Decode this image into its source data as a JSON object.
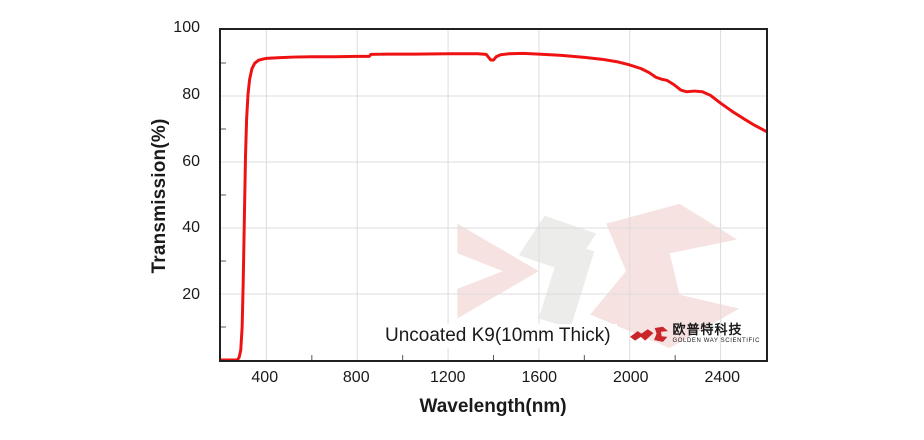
{
  "chart_data": {
    "type": "line",
    "title": "",
    "xlabel": "Wavelength(nm)",
    "ylabel": "Transmission(%)",
    "xlim": [
      200,
      2600
    ],
    "ylim": [
      0,
      100
    ],
    "x_ticks": [
      400,
      800,
      1200,
      1600,
      2000,
      2400
    ],
    "y_ticks": [
      20,
      40,
      60,
      80,
      100
    ],
    "x_minor_ticks": [
      600,
      1000,
      1400,
      1800,
      2200
    ],
    "y_minor_ticks": [
      10,
      30,
      50,
      70,
      90
    ],
    "grid": true,
    "grid_color": "#dcdcdc",
    "axis_color": "#212121",
    "annotation": "Uncoated K9(10mm Thick)",
    "series": [
      {
        "name": "Uncoated K9 10mm Thick",
        "color": "#ee1212",
        "points": [
          [
            200,
            0
          ],
          [
            272,
            0
          ],
          [
            280,
            0.8
          ],
          [
            287,
            3
          ],
          [
            293,
            10
          ],
          [
            298,
            24
          ],
          [
            303,
            44
          ],
          [
            308,
            62
          ],
          [
            313,
            73
          ],
          [
            319,
            80.5
          ],
          [
            326,
            85
          ],
          [
            336,
            88.2
          ],
          [
            348,
            89.9
          ],
          [
            365,
            90.8
          ],
          [
            385,
            91.2
          ],
          [
            400,
            91.4
          ],
          [
            450,
            91.6
          ],
          [
            520,
            91.8
          ],
          [
            600,
            91.9
          ],
          [
            700,
            91.9
          ],
          [
            800,
            92.0
          ],
          [
            853,
            92.0
          ],
          [
            860,
            92.6
          ],
          [
            930,
            92.7
          ],
          [
            1050,
            92.7
          ],
          [
            1200,
            92.8
          ],
          [
            1330,
            92.8
          ],
          [
            1368,
            92.6
          ],
          [
            1388,
            90.9
          ],
          [
            1400,
            90.9
          ],
          [
            1412,
            91.9
          ],
          [
            1430,
            92.5
          ],
          [
            1470,
            92.8
          ],
          [
            1530,
            92.9
          ],
          [
            1600,
            92.7
          ],
          [
            1700,
            92.3
          ],
          [
            1800,
            91.7
          ],
          [
            1880,
            91.1
          ],
          [
            1950,
            90.3
          ],
          [
            2000,
            89.4
          ],
          [
            2050,
            88.3
          ],
          [
            2085,
            87.1
          ],
          [
            2115,
            85.7
          ],
          [
            2140,
            85.1
          ],
          [
            2165,
            84.7
          ],
          [
            2195,
            83.4
          ],
          [
            2225,
            81.8
          ],
          [
            2250,
            81.3
          ],
          [
            2285,
            81.5
          ],
          [
            2320,
            81.3
          ],
          [
            2355,
            80.2
          ],
          [
            2400,
            77.8
          ],
          [
            2450,
            75.4
          ],
          [
            2500,
            73.2
          ],
          [
            2550,
            71.1
          ],
          [
            2600,
            69.3
          ]
        ]
      }
    ]
  },
  "branding": {
    "logo_cn": "欧普特科技",
    "logo_en": "GOLDEN WAY SCIENTIFIC",
    "logo_red": "#c9252b",
    "logo_cn_color": "#6a5a57",
    "logo_en_color": "#b3aaa6",
    "watermark_pink": "#f6e2e0",
    "watermark_gray": "#ececea"
  }
}
